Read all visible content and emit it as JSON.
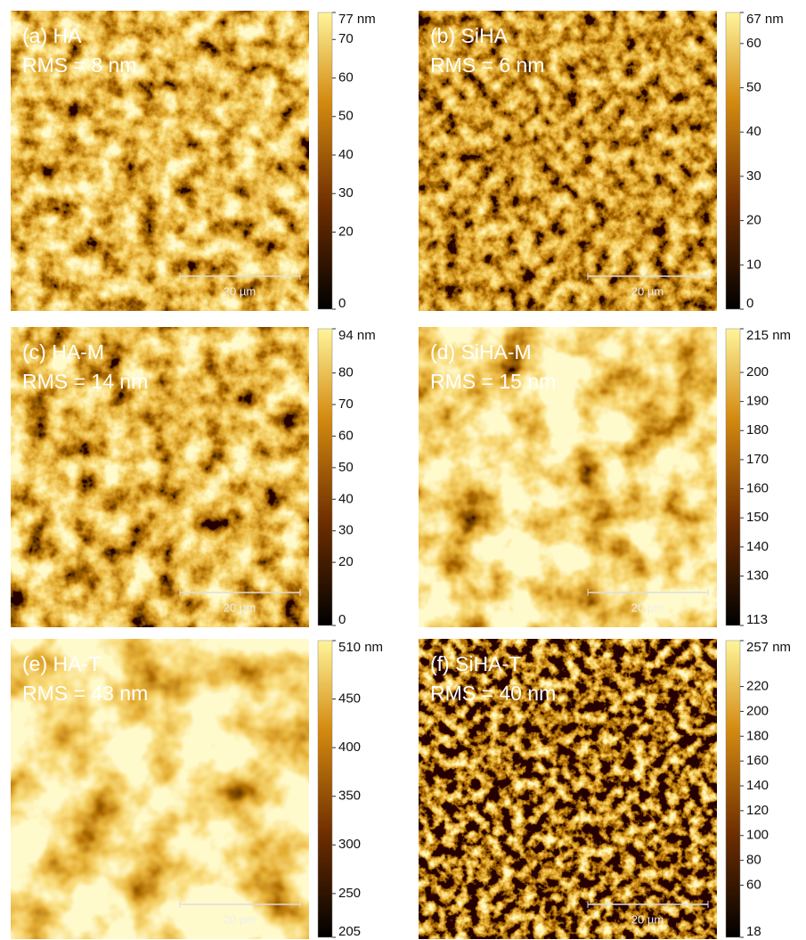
{
  "panels": [
    {
      "label": "(a) HA",
      "rms": "RMS = 8 nm",
      "scale_bar": "20 µm",
      "colorbar": {
        "range": [
          0,
          77
        ],
        "ticks": [
          {
            "value": 77,
            "label": "77 nm"
          },
          70,
          60,
          50,
          40,
          30,
          20,
          0
        ]
      }
    },
    {
      "label": "(b) SiHA",
      "rms": "RMS = 6 nm",
      "scale_bar": "20 µm",
      "colorbar": {
        "range": [
          0,
          67
        ],
        "ticks": [
          {
            "value": 67,
            "label": "67 nm"
          },
          60,
          50,
          40,
          30,
          20,
          10,
          0
        ]
      }
    },
    {
      "label": "(c) HA-M",
      "rms": "RMS = 14 nm",
      "scale_bar": "20 µm",
      "colorbar": {
        "range": [
          0,
          94
        ],
        "ticks": [
          {
            "value": 94,
            "label": "94 nm"
          },
          80,
          70,
          60,
          50,
          40,
          30,
          20,
          0
        ]
      }
    },
    {
      "label": "(d) SiHA-M",
      "rms": "RMS = 15 nm",
      "scale_bar": "20 µm",
      "colorbar": {
        "range": [
          113,
          215
        ],
        "ticks": [
          {
            "value": 215,
            "label": "215 nm"
          },
          200,
          190,
          180,
          170,
          160,
          150,
          140,
          130,
          113
        ]
      }
    },
    {
      "label": "(e) HA-T",
      "rms": "RMS = 43 nm",
      "scale_bar": "20 µm",
      "colorbar": {
        "range": [
          205,
          510
        ],
        "ticks": [
          {
            "value": 510,
            "label": "510 nm"
          },
          450,
          400,
          350,
          300,
          250,
          205
        ]
      }
    },
    {
      "label": "(f) SiHA-T",
      "rms": "RMS = 40 nm",
      "scale_bar": "20 µm",
      "colorbar": {
        "range": [
          18,
          257
        ],
        "ticks": [
          {
            "value": 257,
            "label": "257 nm"
          },
          220,
          200,
          180,
          160,
          140,
          120,
          100,
          80,
          60,
          18
        ]
      }
    }
  ]
}
